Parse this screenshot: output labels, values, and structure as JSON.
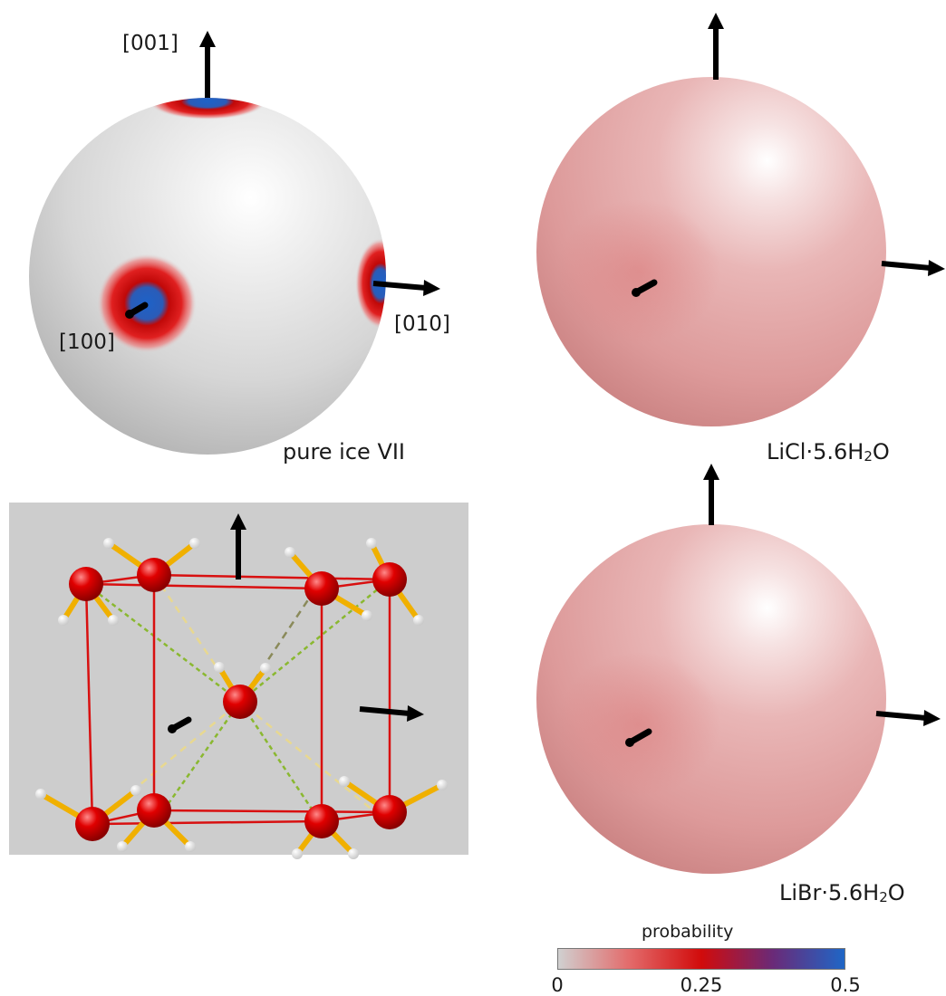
{
  "panels": {
    "pure": {
      "label": "pure ice VII",
      "axis_001": "[001]",
      "axis_010": "[010]",
      "axis_100": "[100]"
    },
    "licl": {
      "prefix": "LiCl·5.6H",
      "subscript": "2",
      "suffix": "O"
    },
    "libr": {
      "prefix": "LiBr·5.6H",
      "subscript": "2",
      "suffix": "O"
    }
  },
  "colorbar": {
    "title": "probability",
    "ticks": [
      "0",
      "0.25",
      "0.5"
    ],
    "colors": [
      "#d0d0d0",
      "#e36a6a",
      "#d10b0b",
      "#6a2a78",
      "#1f66c6"
    ]
  },
  "crystal": {
    "background": "#cdcdcd",
    "oxygen_color": "#e00000",
    "bond_color": "#f0b000"
  }
}
